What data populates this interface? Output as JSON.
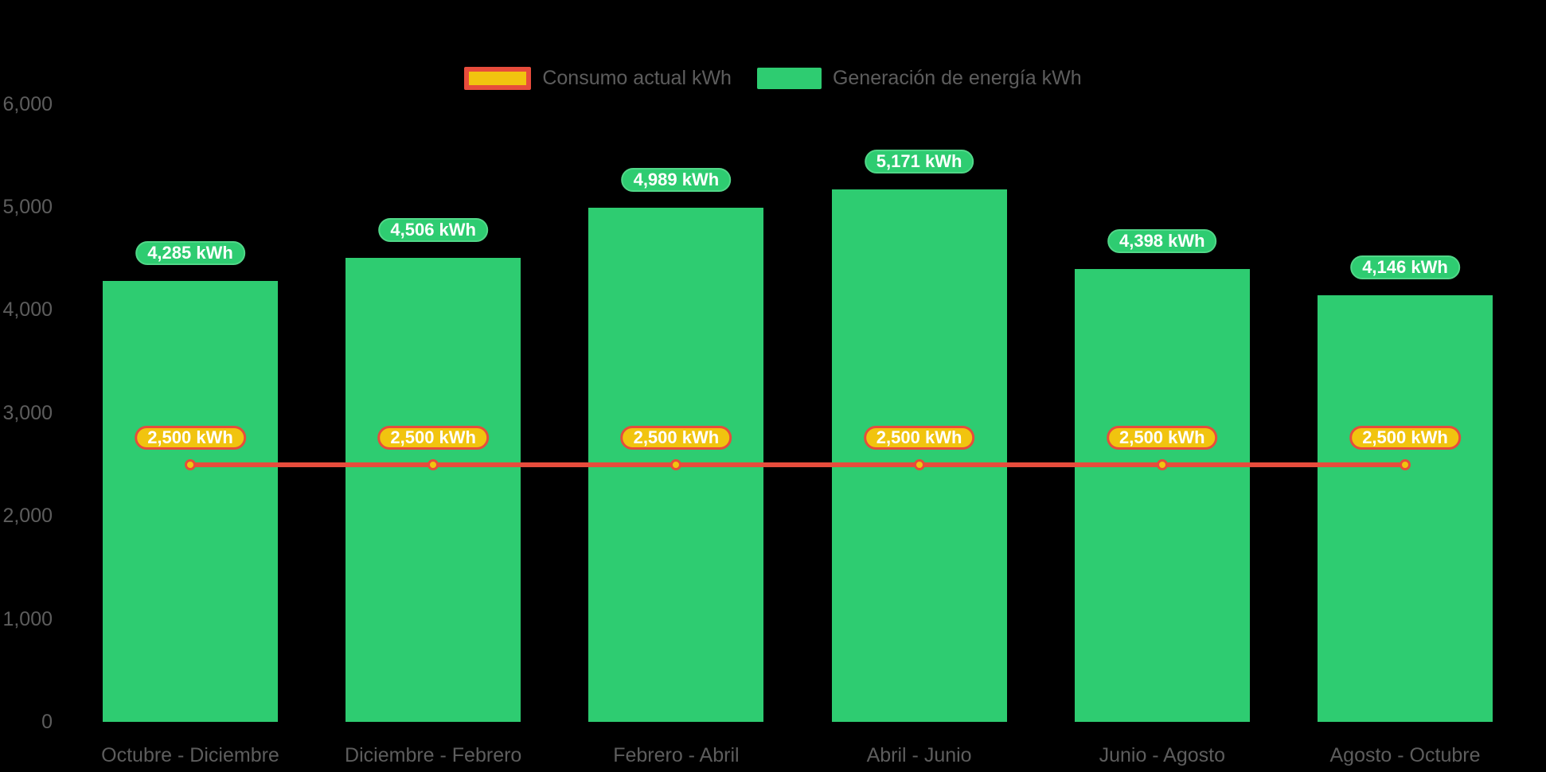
{
  "colors": {
    "background": "#000000",
    "generation_green": "#2ecc71",
    "consumption_yellow": "#f1c40f",
    "consumption_red": "#e74c3c",
    "axis_label_gray": "#5d5d5d",
    "value_label_text": "#ffffff"
  },
  "legend": {
    "items": [
      {
        "id": "consumo",
        "label": "Consumo actual kWh"
      },
      {
        "id": "generacion",
        "label": "Generación de energía kWh"
      }
    ]
  },
  "chart_data": {
    "type": "bar",
    "title": "",
    "xlabel": "",
    "ylabel": "",
    "legend_position": "top",
    "grid": false,
    "ylim": [
      0,
      6000
    ],
    "y_ticks": [
      0,
      1000,
      2000,
      3000,
      4000,
      5000,
      6000
    ],
    "y_tick_labels": [
      "0",
      "1,000",
      "2,000",
      "3,000",
      "4,000",
      "5,000",
      "6,000"
    ],
    "categories": [
      "Octubre - Diciembre",
      "Diciembre - Febrero",
      "Febrero - Abril",
      "Abril - Junio",
      "Junio - Agosto",
      "Agosto - Octubre"
    ],
    "series": [
      {
        "name": "Generación de energía kWh",
        "type": "bar",
        "color": "#2ecc71",
        "values": [
          4285,
          4506,
          4989,
          5171,
          4398,
          4146
        ],
        "labels": [
          "4,285 kWh",
          "4,506 kWh",
          "4,989 kWh",
          "5,171 kWh",
          "4,398 kWh",
          "4,146 kWh"
        ]
      },
      {
        "name": "Consumo actual kWh",
        "type": "line",
        "color": "#e74c3c",
        "marker_fill": "#f1c40f",
        "values": [
          2500,
          2500,
          2500,
          2500,
          2500,
          2500
        ],
        "labels": [
          "2,500 kWh",
          "2,500 kWh",
          "2,500 kWh",
          "2,500 kWh",
          "2,500 kWh",
          "2,500 kWh"
        ]
      }
    ]
  }
}
